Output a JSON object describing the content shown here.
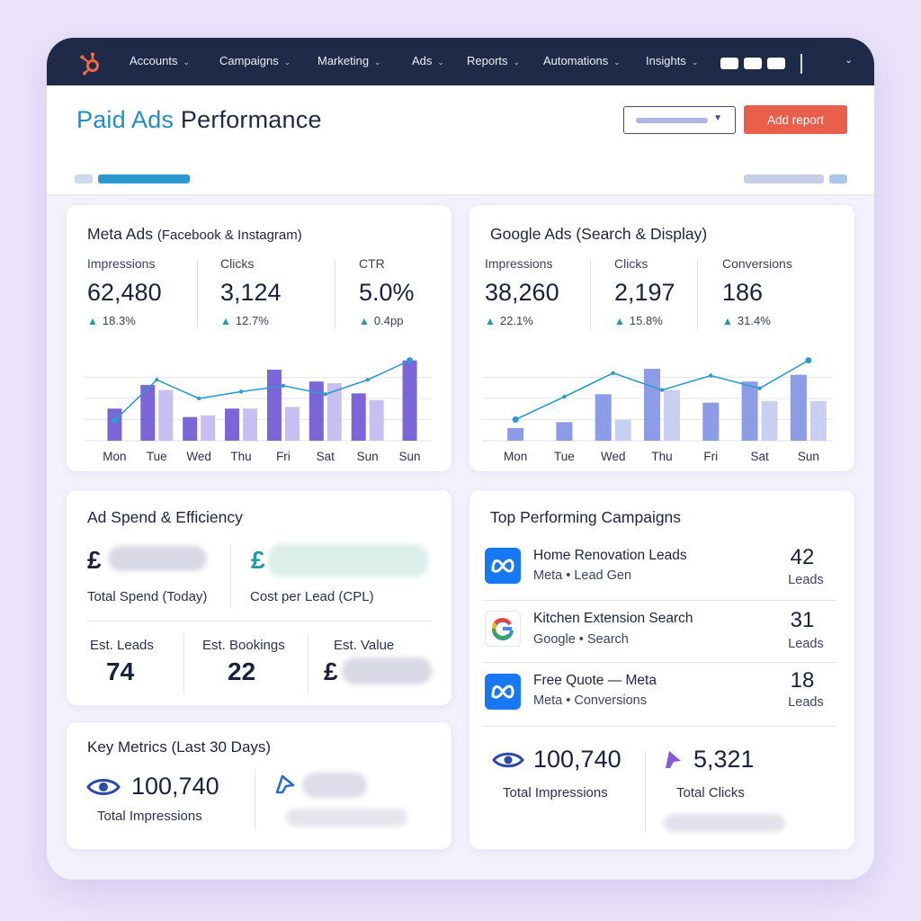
{
  "nav": {
    "items": [
      {
        "label": "Accounts"
      },
      {
        "label": "Campaigns"
      },
      {
        "label": "Marketing"
      },
      {
        "label": "Ads"
      },
      {
        "label": "Reports"
      },
      {
        "label": "Automations"
      },
      {
        "label": "Insights"
      }
    ]
  },
  "header": {
    "title_accent": "Paid Ads",
    "title_rest": "Performance",
    "add_report": "Add report"
  },
  "meta_card": {
    "title": "Meta Ads",
    "subtitle": "(Facebook & Instagram)",
    "metrics": [
      {
        "label": "Impressions",
        "value": "62,480",
        "delta": "18.3%"
      },
      {
        "label": "Clicks",
        "value": "3,124",
        "delta": "12.7%"
      },
      {
        "label": "CTR",
        "value": "5.0%",
        "delta": "0.4pp"
      }
    ],
    "days": [
      "Mon",
      "Tue",
      "Wed",
      "Thu",
      "Fri",
      "Sat",
      "Sun",
      "Sun"
    ]
  },
  "google_card": {
    "title": "Google Ads (Search & Display)",
    "metrics": [
      {
        "label": "Impressions",
        "value": "38,260",
        "delta": "22.1%"
      },
      {
        "label": "Clicks",
        "value": "2,197",
        "delta": "15.8%"
      },
      {
        "label": "Conversions",
        "value": "186",
        "delta": "31.4%"
      }
    ],
    "days": [
      "Mon",
      "Tue",
      "Wed",
      "Thu",
      "Fri",
      "Sat",
      "Sun"
    ]
  },
  "chart_data": [
    {
      "type": "bar",
      "chart": "meta",
      "categories": [
        "Mon",
        "Tue",
        "Wed",
        "Thu",
        "Fri",
        "Sat",
        "Sun",
        "Sun"
      ],
      "series": [
        {
          "values": [
            38,
            66,
            28,
            38,
            84,
            70,
            56,
            95
          ]
        },
        {
          "values": [
            0,
            60,
            30,
            38,
            40,
            68,
            48,
            0
          ]
        },
        {
          "values": [
            24,
            72,
            50,
            58,
            65,
            55,
            72,
            95
          ]
        }
      ],
      "ylim": [
        0,
        100
      ]
    },
    {
      "type": "bar",
      "chart": "google",
      "categories": [
        "Mon",
        "Tue",
        "Wed",
        "Thu",
        "Fri",
        "Sat",
        "Sun"
      ],
      "series": [
        {
          "values": [
            15,
            22,
            55,
            85,
            45,
            70,
            78
          ]
        },
        {
          "values": [
            0,
            0,
            25,
            60,
            0,
            47,
            47
          ]
        },
        {
          "values": [
            25,
            52,
            80,
            60,
            77,
            62,
            95
          ]
        }
      ],
      "ylim": [
        0,
        100
      ]
    }
  ],
  "spend_card": {
    "title": "Ad Spend & Efficiency",
    "currency": "£",
    "total_spend_label": "Total Spend (Today)",
    "cpl_label": "Cost per Lead (CPL)",
    "stats": [
      {
        "label": "Est. Leads",
        "value": "74"
      },
      {
        "label": "Est. Bookings",
        "value": "22"
      },
      {
        "label": "Est. Value",
        "value": "£"
      }
    ]
  },
  "key_card": {
    "title": "Key Metrics (Last 30 Days)",
    "impressions_value": "100,740",
    "impressions_label": "Total Impressions"
  },
  "campaigns_card": {
    "title": "Top Performing Campaigns",
    "items": [
      {
        "name": "Home Renovation Leads",
        "meta": "Meta • Lead Gen",
        "count": "42",
        "unit": "Leads",
        "icon": "meta-icon"
      },
      {
        "name": "Kitchen Extension Search",
        "meta": "Google • Search",
        "count": "31",
        "unit": "Leads",
        "icon": "google-icon"
      },
      {
        "name": "Free Quote — Meta",
        "meta": "Meta • Conversions",
        "count": "18",
        "unit": "Leads",
        "icon": "meta-icon"
      }
    ],
    "totals": [
      {
        "value": "100,740",
        "label": "Total Impressions",
        "icon": "eye-icon"
      },
      {
        "value": "5,321",
        "label": "Total Clicks",
        "icon": "cursor-icon"
      }
    ]
  },
  "colors": {
    "nav_bg": "#1f2a48",
    "accent": "#1f8ec4",
    "primary_button": "#e8604c",
    "meta_bar": "#7a66d6",
    "meta_bar_light": "#c7bff0",
    "google_bar": "#8d9ce6",
    "trend_line": "#2f9ad0",
    "positive": "#1f9aa6"
  }
}
